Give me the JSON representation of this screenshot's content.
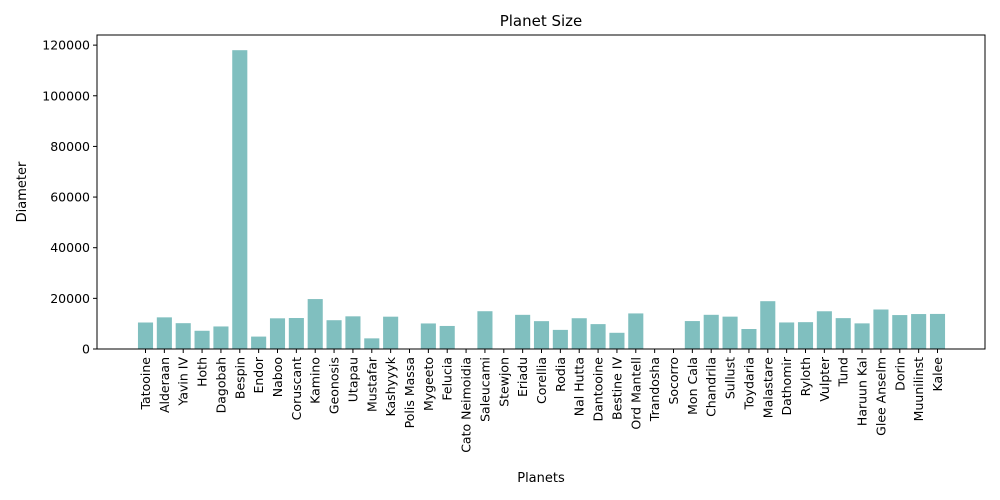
{
  "chart_data": {
    "type": "bar",
    "title": "Planet Size",
    "xlabel": "Planets",
    "ylabel": "Diameter",
    "ylim": [
      0,
      124000
    ],
    "yticks": [
      0,
      20000,
      40000,
      60000,
      80000,
      100000,
      120000
    ],
    "grid": false,
    "bar_color": "#80bfbf",
    "categories": [
      "Tatooine",
      "Alderaan",
      "Yavin IV",
      "Hoth",
      "Dagobah",
      "Bespin",
      "Endor",
      "Naboo",
      "Coruscant",
      "Kamino",
      "Geonosis",
      "Utapau",
      "Mustafar",
      "Kashyyyk",
      "Polis Massa",
      "Mygeeto",
      "Felucia",
      "Cato Neimoidia",
      "Saleucami",
      "Stewjon",
      "Eriadu",
      "Corellia",
      "Rodia",
      "Nal Hutta",
      "Dantooine",
      "Bestine IV",
      "Ord Mantell",
      "Trandosha",
      "Socorro",
      "Mon Cala",
      "Chandrila",
      "Sullust",
      "Toydaria",
      "Malastare",
      "Dathomir",
      "Ryloth",
      "Vulpter",
      "Tund",
      "Haruun Kal",
      "Glee Anselm",
      "Dorin",
      "Muunilinst",
      "Kalee"
    ],
    "values": [
      10465,
      12500,
      10200,
      7200,
      8900,
      118000,
      4900,
      12120,
      12240,
      19720,
      11370,
      12900,
      4200,
      12765,
      0,
      10088,
      9100,
      0,
      14920,
      0,
      13490,
      11000,
      7549,
      12150,
      9830,
      6400,
      14050,
      0,
      0,
      11030,
      13500,
      12780,
      7900,
      18880,
      10480,
      10600,
      14900,
      12190,
      10120,
      15600,
      13400,
      13800,
      13850
    ]
  }
}
